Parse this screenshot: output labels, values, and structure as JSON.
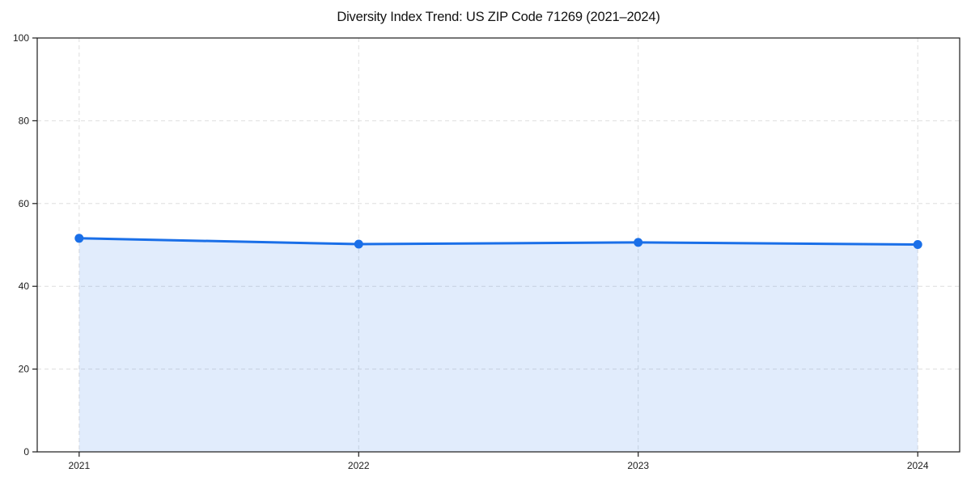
{
  "chart_data": {
    "type": "area",
    "title": "Diversity Index Trend: US ZIP Code 71269 (2021–2024)",
    "categories": [
      "2021",
      "2022",
      "2023",
      "2024"
    ],
    "x": [
      2021,
      2022,
      2023,
      2024
    ],
    "series": [
      {
        "name": "Diversity Index",
        "values": [
          51.6,
          50.2,
          50.6,
          50.1
        ]
      }
    ],
    "xlabel": "",
    "ylabel": "",
    "ylim": [
      0,
      100
    ],
    "xlim": [
      2020.85,
      2024.15
    ],
    "yticks": [
      0,
      20,
      40,
      60,
      80,
      100
    ],
    "xticks": [
      2021,
      2022,
      2023,
      2024
    ],
    "grid": true,
    "grid_style": "dashed",
    "legend_position": "none",
    "colors": {
      "line": "#1a6fe8",
      "marker": "#1a6fe8",
      "fill": "#1a6fe8",
      "fill_opacity": 0.13,
      "grid": "#dedede",
      "spine": "#1c1c1c",
      "tick_label": "#1c1c1c",
      "title": "#111111",
      "background": "#ffffff"
    }
  }
}
